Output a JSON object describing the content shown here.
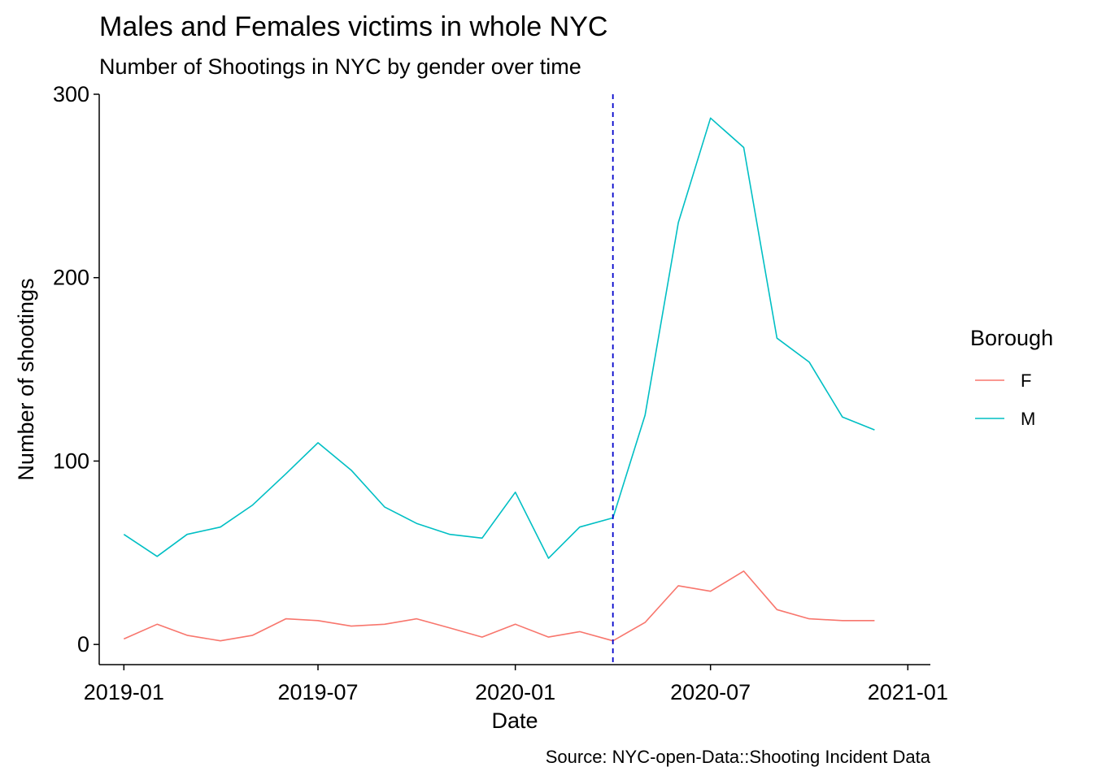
{
  "chart_data": {
    "type": "line",
    "title": "Males and Females victims in whole NYC",
    "subtitle": "Number of Shootings in NYC by gender over time",
    "xlabel": "Date",
    "ylabel": "Number of shootings",
    "caption": "Source: NYC-open-Data::Shooting Incident Data",
    "x": [
      "2019-01",
      "2019-02",
      "2019-03",
      "2019-04",
      "2019-05",
      "2019-06",
      "2019-07",
      "2019-08",
      "2019-09",
      "2019-10",
      "2019-11",
      "2019-12",
      "2020-01",
      "2020-02",
      "2020-03",
      "2020-04",
      "2020-05",
      "2020-06",
      "2020-07",
      "2020-08",
      "2020-09",
      "2020-10",
      "2020-11",
      "2020-12"
    ],
    "xlim": [
      "2018-12-09",
      "2021-01-22"
    ],
    "x_ticks": [
      "2019-01",
      "2019-07",
      "2020-01",
      "2020-07",
      "2021-01"
    ],
    "ylim": [
      -11,
      300
    ],
    "y_ticks": [
      0,
      100,
      200,
      300
    ],
    "legend": {
      "title": "Borough",
      "position": "right"
    },
    "grid": false,
    "series": [
      {
        "name": "F",
        "color": "#F8766D",
        "values": [
          3,
          11,
          5,
          2,
          5,
          14,
          13,
          10,
          11,
          14,
          9,
          4,
          11,
          4,
          7,
          2,
          12,
          32,
          29,
          40,
          19,
          14,
          13,
          13
        ]
      },
      {
        "name": "M",
        "color": "#00BFC4",
        "values": [
          60,
          48,
          60,
          64,
          76,
          93,
          110,
          95,
          75,
          66,
          60,
          58,
          83,
          47,
          64,
          69,
          125,
          230,
          287,
          271,
          167,
          154,
          124,
          117
        ]
      }
    ],
    "vline": {
      "x": "2020-04-01",
      "color": "#0000CC",
      "style": "dashed"
    }
  }
}
